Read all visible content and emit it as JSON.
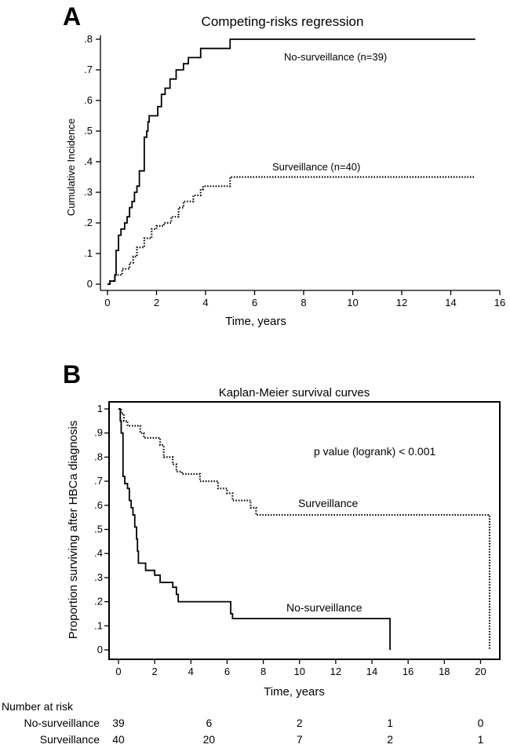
{
  "chart_data": [
    {
      "panel": "A",
      "type": "line",
      "title": "Competing-risks regression",
      "xlabel": "Time, years",
      "ylabel": "Cumulative Incidence",
      "xlim": [
        0,
        16
      ],
      "ylim": [
        0,
        0.8
      ],
      "xticks": [
        "0",
        "2",
        "4",
        "6",
        "8",
        "10",
        "12",
        "14",
        "16"
      ],
      "yticks": [
        "0",
        ".1",
        ".2",
        ".3",
        ".4",
        ".5",
        ".6",
        ".7",
        ".8"
      ],
      "series": [
        {
          "name": "No-surveillance (n=39)",
          "style": "solid",
          "step": [
            [
              0,
              0
            ],
            [
              0.1,
              0.01
            ],
            [
              0.3,
              0.03
            ],
            [
              0.35,
              0.11
            ],
            [
              0.45,
              0.16
            ],
            [
              0.55,
              0.18
            ],
            [
              0.7,
              0.2
            ],
            [
              0.8,
              0.22
            ],
            [
              0.9,
              0.25
            ],
            [
              1.0,
              0.27
            ],
            [
              1.1,
              0.3
            ],
            [
              1.2,
              0.32
            ],
            [
              1.3,
              0.37
            ],
            [
              1.5,
              0.48
            ],
            [
              1.6,
              0.5
            ],
            [
              1.65,
              0.53
            ],
            [
              1.7,
              0.55
            ],
            [
              2.05,
              0.58
            ],
            [
              2.2,
              0.62
            ],
            [
              2.35,
              0.64
            ],
            [
              2.55,
              0.67
            ],
            [
              2.8,
              0.7
            ],
            [
              3.1,
              0.72
            ],
            [
              3.3,
              0.74
            ],
            [
              3.8,
              0.77
            ],
            [
              5.0,
              0.8
            ],
            [
              15.0,
              0.8
            ]
          ]
        },
        {
          "name": "Surveillance (n=40)",
          "style": "dotted",
          "step": [
            [
              0,
              0
            ],
            [
              0.1,
              0.01
            ],
            [
              0.3,
              0.03
            ],
            [
              0.6,
              0.05
            ],
            [
              0.9,
              0.07
            ],
            [
              1.05,
              0.09
            ],
            [
              1.2,
              0.12
            ],
            [
              1.5,
              0.15
            ],
            [
              1.8,
              0.18
            ],
            [
              2.0,
              0.19
            ],
            [
              2.3,
              0.2
            ],
            [
              2.6,
              0.22
            ],
            [
              2.9,
              0.25
            ],
            [
              3.1,
              0.27
            ],
            [
              3.5,
              0.29
            ],
            [
              3.8,
              0.31
            ],
            [
              3.9,
              0.32
            ],
            [
              5.0,
              0.35
            ],
            [
              15.0,
              0.35
            ]
          ]
        }
      ]
    },
    {
      "panel": "B",
      "type": "line",
      "title": "Kaplan-Meier survival curves",
      "xlabel": "Time, years",
      "ylabel": "Proportion surviving after HBCa diagnosis",
      "xlim": [
        0,
        20.5
      ],
      "ylim": [
        0,
        1
      ],
      "xticks": [
        "0",
        "2",
        "4",
        "6",
        "8",
        "10",
        "12",
        "14",
        "16",
        "18",
        "20"
      ],
      "yticks": [
        "0",
        ".1",
        ".2",
        ".3",
        ".4",
        ".5",
        ".6",
        ".7",
        ".8",
        ".9",
        "1"
      ],
      "annotation": "p value (logrank) < 0.001",
      "series": [
        {
          "name": "No-surveillance",
          "style": "solid",
          "step": [
            [
              0,
              1
            ],
            [
              0.1,
              0.95
            ],
            [
              0.15,
              0.9
            ],
            [
              0.25,
              0.72
            ],
            [
              0.35,
              0.69
            ],
            [
              0.5,
              0.67
            ],
            [
              0.6,
              0.62
            ],
            [
              0.7,
              0.59
            ],
            [
              0.8,
              0.56
            ],
            [
              0.9,
              0.51
            ],
            [
              1.0,
              0.46
            ],
            [
              1.05,
              0.41
            ],
            [
              1.1,
              0.36
            ],
            [
              1.3,
              0.36
            ],
            [
              1.5,
              0.33
            ],
            [
              2.0,
              0.31
            ],
            [
              2.3,
              0.28
            ],
            [
              3.0,
              0.26
            ],
            [
              3.2,
              0.23
            ],
            [
              3.3,
              0.2
            ],
            [
              6.0,
              0.2
            ],
            [
              6.2,
              0.15
            ],
            [
              6.3,
              0.13
            ],
            [
              15.0,
              0.13
            ],
            [
              15.0,
              0.0
            ]
          ]
        },
        {
          "name": "Surveillance",
          "style": "dotted",
          "step": [
            [
              0,
              1
            ],
            [
              0.15,
              0.98
            ],
            [
              0.3,
              0.95
            ],
            [
              0.5,
              0.93
            ],
            [
              1.2,
              0.9
            ],
            [
              1.4,
              0.88
            ],
            [
              2.3,
              0.85
            ],
            [
              2.5,
              0.8
            ],
            [
              3.0,
              0.77
            ],
            [
              3.2,
              0.74
            ],
            [
              3.5,
              0.73
            ],
            [
              4.5,
              0.7
            ],
            [
              5.5,
              0.67
            ],
            [
              6.0,
              0.65
            ],
            [
              6.3,
              0.62
            ],
            [
              7.3,
              0.59
            ],
            [
              7.6,
              0.56
            ],
            [
              20.5,
              0.56
            ],
            [
              20.5,
              0.0
            ]
          ]
        }
      ]
    }
  ],
  "risk_table": {
    "header": "Number at risk",
    "rows": [
      {
        "label": "No-surveillance",
        "values": [
          "39",
          "6",
          "2",
          "1",
          "0"
        ]
      },
      {
        "label": "Surveillance",
        "values": [
          "40",
          "20",
          "7",
          "2",
          "1"
        ]
      }
    ]
  },
  "labels": {
    "panel_a": "A",
    "panel_b": "B"
  }
}
